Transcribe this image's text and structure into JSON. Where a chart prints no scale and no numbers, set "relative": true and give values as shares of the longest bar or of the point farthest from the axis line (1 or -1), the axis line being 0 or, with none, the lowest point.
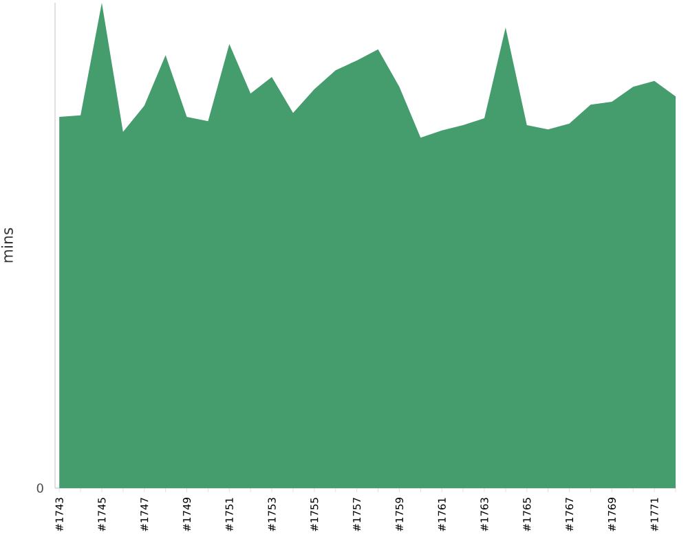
{
  "chart_data": {
    "type": "area",
    "ylabel": "mins",
    "relative": true,
    "annotations": [
      "0"
    ],
    "categories": [
      "#1743",
      null,
      "#1745",
      null,
      "#1747",
      null,
      "#1749",
      null,
      "#1751",
      null,
      "#1753",
      null,
      "#1755",
      null,
      "#1757",
      null,
      "#1759",
      null,
      "#1761",
      null,
      "#1763",
      null,
      "#1765",
      null,
      "#1767",
      null,
      "#1769",
      null,
      "#1771",
      null
    ],
    "values": [
      0.765,
      0.768,
      1,
      0.734,
      0.788,
      0.892,
      0.765,
      0.756,
      0.915,
      0.813,
      0.847,
      0.773,
      0.822,
      0.861,
      0.881,
      0.904,
      0.827,
      0.722,
      0.737,
      0.748,
      0.762,
      0.949,
      0.748,
      0.739,
      0.751,
      0.79,
      0.796,
      0.827,
      0.839,
      0.807
    ],
    "color": "#459d6d"
  }
}
